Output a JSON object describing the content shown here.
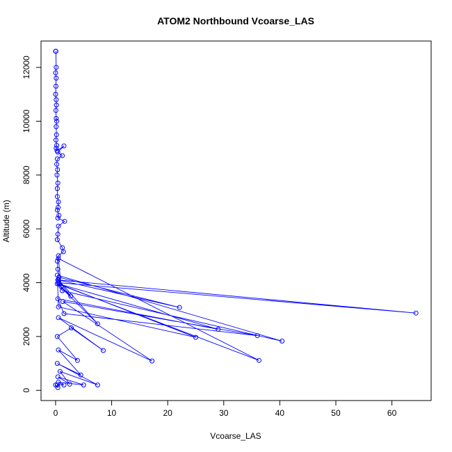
{
  "chart_data": {
    "type": "line",
    "title": "ATOM2 Northbound Vcoarse_LAS",
    "xlabel": "Vcoarse_LAS",
    "ylabel": "Altitude (m)",
    "xlim": [
      -2.6,
      67.0
    ],
    "ylim": [
      -380,
      12980
    ],
    "xticks": [
      0,
      10,
      20,
      30,
      40,
      50,
      60
    ],
    "yticks": [
      0,
      2000,
      4000,
      6000,
      8000,
      10000,
      12000
    ],
    "grid": false,
    "legend": "none",
    "series_color": "#0000ff",
    "marker": "open-circle",
    "series": [
      {
        "x": [
          0.0,
          0.05,
          0.1,
          0.0,
          0.1,
          0.05,
          0.0,
          0.1,
          0.15,
          0.05,
          0.1,
          0.2,
          0.1,
          0.15,
          0.05,
          0.2,
          0.1,
          0.25,
          1.5,
          0.4,
          1.2,
          0.3,
          0.2,
          0.35,
          0.25,
          0.4,
          0.3,
          0.3,
          0.5,
          0.45,
          0.3,
          0.6,
          0.4,
          1.6,
          0.5,
          0.4,
          0.3,
          1.2,
          1.4,
          0.5,
          0.3,
          0.4,
          0.6,
          22.1,
          0.5,
          7.5,
          0.3,
          36.3,
          0.5,
          1.0,
          2.7,
          0.4,
          64.3,
          0.5,
          1.2,
          40.4,
          0.3,
          0.5,
          25.0,
          0.6,
          29.0,
          0.4,
          1.5,
          36.0,
          1.3,
          17.2,
          0.5,
          8.5,
          2.8,
          0.3,
          3.9,
          0.5,
          4.5,
          0.3,
          7.5,
          0.8,
          2.5,
          0.4,
          5.0,
          0.5,
          1.5,
          0.3,
          0.4,
          0.0
        ],
        "y": [
          12600,
          12600,
          12000,
          11800,
          11600,
          11300,
          11000,
          10800,
          10600,
          10400,
          10100,
          10000,
          9800,
          9500,
          9300,
          9100,
          9000,
          8900,
          9080,
          8850,
          8720,
          8600,
          8400,
          8200,
          8000,
          7700,
          7500,
          7200,
          7000,
          6800,
          6700,
          6500,
          6400,
          6280,
          6100,
          5800,
          5600,
          5300,
          5150,
          5000,
          4800,
          4500,
          4200,
          3080,
          4100,
          2470,
          3960,
          1110,
          4900,
          3850,
          3500,
          4100,
          2870,
          4000,
          3700,
          1830,
          4280,
          3100,
          1970,
          3950,
          2270,
          3400,
          2850,
          2030,
          3300,
          1090,
          2700,
          1480,
          2320,
          2000,
          1110,
          1500,
          570,
          1000,
          200,
          700,
          230,
          500,
          200,
          300,
          200,
          200,
          100,
          200
        ]
      }
    ]
  }
}
